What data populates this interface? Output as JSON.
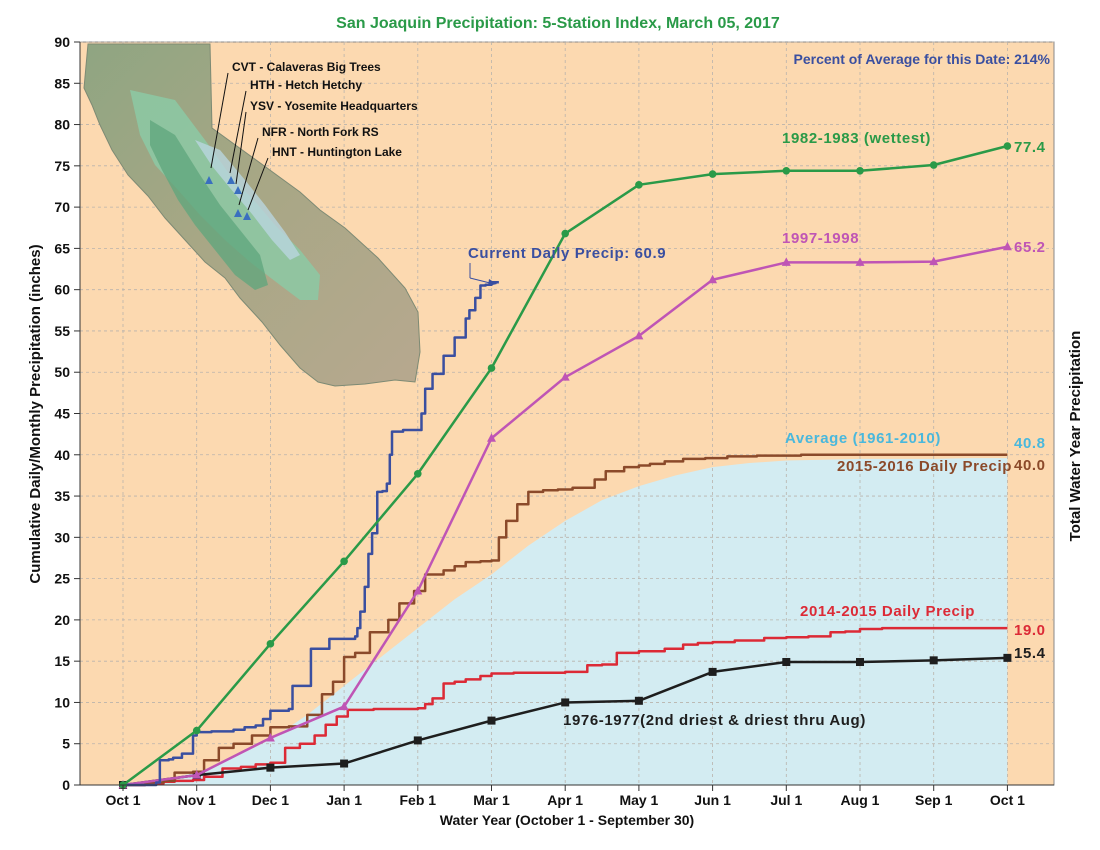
{
  "chart_data": {
    "type": "line",
    "title": "San Joaquin Precipitation: 5-Station Index, March 05, 2017",
    "subtitle": "Percent of Average for this Date: 214%",
    "xlabel": "Water Year (October 1 - September 30)",
    "ylabel": "Cumulative Daily/Monthly Precipitation (inches)",
    "ylabel_right": "Total Water Year Precipitation",
    "ylim": [
      0,
      90
    ],
    "yticks": [
      0,
      5,
      10,
      15,
      20,
      25,
      30,
      35,
      40,
      45,
      50,
      55,
      60,
      65,
      70,
      75,
      80,
      85,
      90
    ],
    "xticks": [
      "Oct 1",
      "Nov 1",
      "Dec 1",
      "Jan 1",
      "Feb 1",
      "Mar 1",
      "Apr 1",
      "May 1",
      "Jun 1",
      "Jul 1",
      "Aug 1",
      "Sep 1",
      "Oct 1"
    ],
    "grid": true,
    "colors": {
      "background": "#fcd9b0",
      "average_fill": "#d3ecf2",
      "wettest": "#2a9a48",
      "wet1997": "#bf55b5",
      "current": "#3a4fa0",
      "wy2016": "#8b4a2a",
      "wy2015": "#dc2a36",
      "driest": "#1e1e1e",
      "average": "#4ab8dc",
      "title": "#2a9a48",
      "subtitle": "#3a4fa0"
    },
    "series": [
      {
        "name": "1982-1983 (wettest)",
        "key": "wettest",
        "end_label": "77.4",
        "style": "monthly",
        "marker": "circle",
        "x": [
          0,
          1,
          2,
          3,
          4,
          5,
          6,
          7,
          8,
          9,
          10,
          11,
          12
        ],
        "y": [
          0,
          6.6,
          17.1,
          27.1,
          37.7,
          50.5,
          66.8,
          72.7,
          74.0,
          74.4,
          74.4,
          75.1,
          77.4
        ]
      },
      {
        "name": "1997-1998",
        "key": "wet1997",
        "end_label": "65.2",
        "style": "monthly",
        "marker": "triangle",
        "x": [
          0,
          1,
          2,
          3,
          4,
          5,
          6,
          7,
          8,
          9,
          10,
          11,
          12
        ],
        "y": [
          0,
          1.2,
          5.7,
          9.5,
          23.5,
          42.0,
          49.4,
          54.4,
          61.2,
          63.3,
          63.3,
          63.4,
          65.2
        ]
      },
      {
        "name": "Current Daily Precip: 60.9",
        "key": "current",
        "style": "daily",
        "x": [
          0,
          0.45,
          0.5,
          0.62,
          0.68,
          0.8,
          0.95,
          1.0,
          1.05,
          1.2,
          1.5,
          1.65,
          1.8,
          1.9,
          2.0,
          2.25,
          2.3,
          2.55,
          2.6,
          2.8,
          3.0,
          3.15,
          3.18,
          3.22,
          3.28,
          3.33,
          3.38,
          3.45,
          3.5,
          3.52,
          3.58,
          3.62,
          3.65,
          3.8,
          4.0,
          4.05,
          4.1,
          4.2,
          4.35,
          4.5,
          4.55,
          4.65,
          4.7,
          4.78,
          4.85,
          4.92,
          5.0,
          5.1
        ],
        "y": [
          0,
          0.3,
          3.0,
          3.1,
          3.3,
          3.8,
          6.0,
          6.4,
          6.4,
          6.5,
          6.7,
          7.0,
          7.2,
          8.0,
          9.0,
          9.2,
          12.0,
          16.5,
          16.5,
          17.7,
          17.7,
          18.0,
          19.0,
          21.0,
          24.0,
          28.0,
          30.5,
          35.5,
          35.5,
          35.6,
          36.5,
          40.0,
          42.8,
          43.0,
          43.0,
          45.0,
          48.0,
          49.8,
          52.0,
          54.2,
          54.2,
          56.5,
          57.5,
          59.0,
          60.5,
          60.6,
          60.9,
          60.9
        ]
      },
      {
        "name": "2015-2016 Daily Precip",
        "key": "wy2016",
        "end_label": "40.0",
        "style": "daily",
        "x": [
          0,
          0.3,
          0.55,
          0.7,
          0.95,
          1.1,
          1.3,
          1.5,
          1.75,
          2.0,
          2.25,
          2.5,
          2.7,
          2.85,
          3.0,
          3.15,
          3.35,
          3.6,
          3.75,
          3.95,
          4.1,
          4.35,
          4.5,
          4.65,
          4.85,
          5.0,
          5.1,
          5.2,
          5.35,
          5.5,
          5.7,
          5.9,
          6.1,
          6.4,
          6.55,
          6.8,
          7.0,
          7.15,
          7.35,
          7.6,
          7.9,
          8.2,
          8.6,
          8.8,
          9.2,
          9.5,
          10.0,
          11.0,
          12.0
        ],
        "y": [
          0,
          0.3,
          0.5,
          1.5,
          1.6,
          3.0,
          4.5,
          5.0,
          6.0,
          7.0,
          7.1,
          8.5,
          11.0,
          12.5,
          15.5,
          16.0,
          18.5,
          20.0,
          22.0,
          23.5,
          25.5,
          26.0,
          26.5,
          27.0,
          27.1,
          27.2,
          30.0,
          32.0,
          34.0,
          35.5,
          35.7,
          35.8,
          36.0,
          37.0,
          38.0,
          38.5,
          38.7,
          38.9,
          39.2,
          39.5,
          39.6,
          39.8,
          39.9,
          39.9,
          40.0,
          40.0,
          40.0,
          40.0,
          40.0
        ]
      },
      {
        "name": "2014-2015 Daily Precip",
        "key": "wy2015",
        "end_label": "19.0",
        "style": "daily",
        "x": [
          0,
          0.3,
          0.55,
          0.7,
          0.95,
          1.1,
          1.35,
          1.6,
          1.8,
          2.0,
          2.2,
          2.4,
          2.6,
          2.75,
          2.9,
          3.05,
          3.2,
          3.4,
          3.6,
          3.8,
          4.0,
          4.1,
          4.2,
          4.35,
          4.5,
          4.65,
          4.85,
          5.0,
          5.3,
          5.6,
          6.0,
          6.3,
          6.5,
          6.7,
          7.0,
          7.35,
          7.6,
          7.8,
          8.0,
          8.3,
          8.7,
          9.0,
          9.3,
          9.6,
          9.8,
          10.0,
          10.3,
          11.0,
          11.6,
          12.0
        ],
        "y": [
          0,
          0.2,
          0.4,
          0.5,
          0.6,
          1.0,
          2.0,
          2.2,
          2.5,
          2.7,
          4.5,
          5.0,
          6.0,
          7.3,
          8.3,
          9.1,
          9.1,
          9.2,
          9.2,
          9.2,
          9.3,
          9.8,
          10.5,
          12.3,
          12.5,
          12.8,
          13.2,
          13.5,
          13.6,
          13.6,
          13.7,
          14.5,
          14.6,
          16.0,
          16.2,
          16.5,
          17.0,
          17.2,
          17.3,
          17.5,
          17.8,
          17.9,
          18.0,
          18.5,
          18.6,
          18.9,
          19.0,
          19.0,
          19.0,
          19.0
        ]
      },
      {
        "name": "1976-1977(2nd driest & driest thru Aug)",
        "key": "driest",
        "end_label": "15.4",
        "style": "monthly",
        "marker": "square",
        "x": [
          0,
          1,
          2,
          3,
          4,
          5,
          6,
          7,
          8,
          9,
          10,
          11,
          12
        ],
        "y": [
          0,
          1.2,
          2.1,
          2.6,
          5.4,
          7.8,
          10.0,
          10.2,
          13.7,
          14.9,
          14.9,
          15.1,
          15.4
        ]
      },
      {
        "name": "Average (1961-2010)",
        "key": "average",
        "end_label": "40.8",
        "style": "area",
        "x": [
          0,
          0.5,
          1,
          1.5,
          2,
          2.5,
          3,
          3.5,
          4,
          4.5,
          5,
          5.5,
          6,
          6.5,
          7,
          7.5,
          8,
          8.5,
          9,
          9.5,
          10,
          10.5,
          11,
          11.5,
          12
        ],
        "y": [
          0,
          0.6,
          1.5,
          3.3,
          5.5,
          8.5,
          12.0,
          15.5,
          19.0,
          22.5,
          25.5,
          29.0,
          32.0,
          34.5,
          36.2,
          37.5,
          38.5,
          39.0,
          39.3,
          39.4,
          39.5,
          39.5,
          39.5,
          39.6,
          39.6
        ]
      }
    ],
    "inset_map": {
      "stations": [
        "CVT - Calaveras Big Trees",
        "HTH - Hetch Hetchy",
        "YSV - Yosemite Headquarters",
        "NFR - North Fork RS",
        "HNT - Huntington Lake"
      ]
    }
  }
}
